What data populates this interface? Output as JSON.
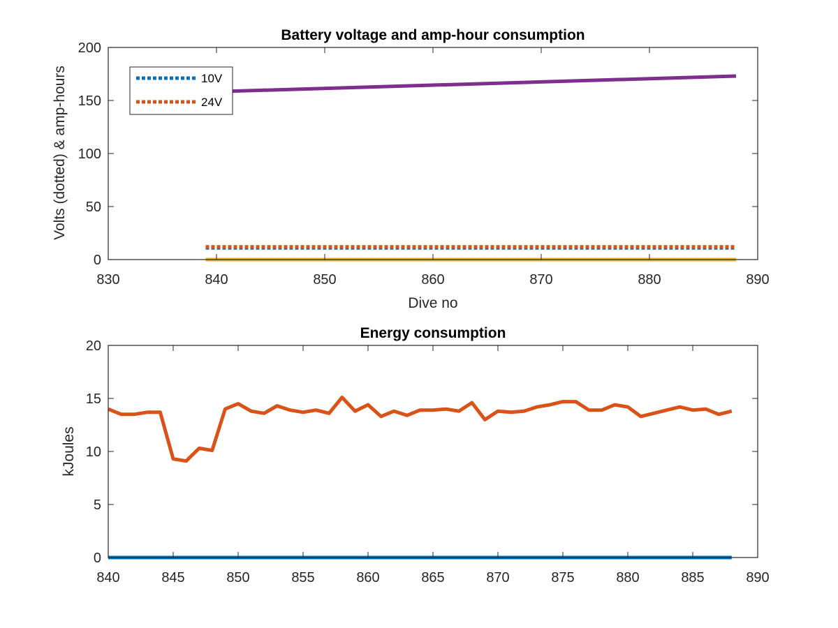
{
  "chart_data": [
    {
      "type": "line",
      "title": "Battery voltage and amp-hour consumption",
      "xlabel": "Dive no",
      "ylabel": "Volts (dotted) & amp-hours",
      "xlim": [
        830,
        890
      ],
      "ylim": [
        0,
        200
      ],
      "xticks": [
        830,
        840,
        850,
        860,
        870,
        880,
        890
      ],
      "yticks": [
        0,
        50,
        100,
        150,
        200
      ],
      "grid": false,
      "legend_position": "top-left",
      "legend": [
        "10V",
        "24V"
      ],
      "series": [
        {
          "name": "10V",
          "style": "dotted",
          "color": "#0072BD",
          "x": [
            839,
            888
          ],
          "y": [
            11,
            11
          ]
        },
        {
          "name": "24V",
          "style": "dotted",
          "color": "#D95319",
          "x": [
            839,
            888
          ],
          "y": [
            12,
            12
          ]
        },
        {
          "style": "solid",
          "color": "#EDB120",
          "x": [
            839,
            888
          ],
          "y": [
            0,
            0
          ]
        },
        {
          "style": "solid",
          "color": "#7E2F8E",
          "x": [
            839,
            888
          ],
          "y": [
            158,
            173
          ]
        }
      ]
    },
    {
      "type": "line",
      "title": "Energy consumption",
      "xlabel": "",
      "ylabel": "kJoules",
      "xlim": [
        840,
        890
      ],
      "ylim": [
        0,
        20
      ],
      "xticks": [
        840,
        845,
        850,
        855,
        860,
        865,
        870,
        875,
        880,
        885,
        890
      ],
      "yticks": [
        0,
        5,
        10,
        15,
        20
      ],
      "grid": false,
      "series": [
        {
          "style": "solid",
          "color": "#0072BD",
          "x": [
            840,
            888
          ],
          "y": [
            0,
            0
          ]
        },
        {
          "style": "solid",
          "color": "#D95319",
          "x": [
            840,
            841,
            842,
            843,
            844,
            845,
            846,
            847,
            848,
            849,
            850,
            851,
            852,
            853,
            854,
            855,
            856,
            857,
            858,
            859,
            860,
            861,
            862,
            863,
            864,
            865,
            866,
            867,
            868,
            869,
            870,
            871,
            872,
            873,
            874,
            875,
            876,
            877,
            878,
            879,
            880,
            881,
            882,
            883,
            884,
            885,
            886,
            887,
            888
          ],
          "y": [
            14.0,
            13.5,
            13.5,
            13.7,
            13.7,
            9.3,
            9.1,
            10.3,
            10.1,
            14.0,
            14.5,
            13.8,
            13.6,
            14.3,
            13.9,
            13.7,
            13.9,
            13.6,
            15.1,
            13.8,
            14.4,
            13.3,
            13.8,
            13.4,
            13.9,
            13.9,
            14.0,
            13.8,
            14.6,
            13.0,
            13.8,
            13.7,
            13.8,
            14.2,
            14.4,
            14.7,
            14.7,
            13.9,
            13.9,
            14.4,
            14.2,
            13.3,
            13.6,
            13.9,
            14.2,
            13.9,
            14.0,
            13.5,
            13.8
          ]
        }
      ]
    }
  ]
}
